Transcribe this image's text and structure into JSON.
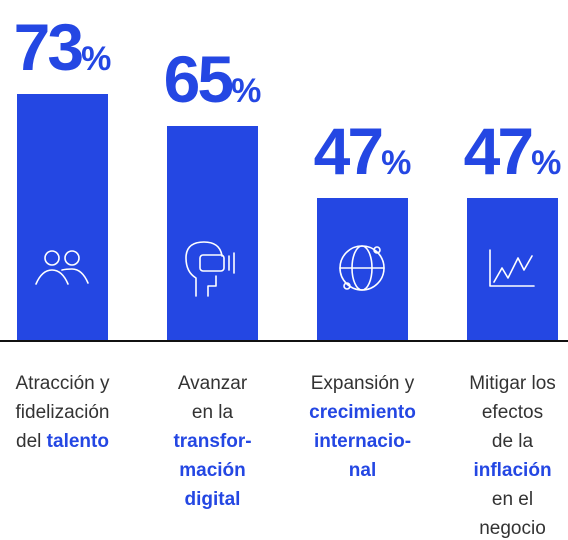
{
  "chart_data": {
    "type": "bar",
    "categories": [
      [
        [
          "Atracción y"
        ],
        [
          "fidelización"
        ],
        [
          "del ",
          {
            "text": "talento",
            "bold": true
          }
        ]
      ],
      [
        [
          "Avanzar"
        ],
        [
          "en la"
        ],
        [
          {
            "text": "transfor-",
            "bold": true
          }
        ],
        [
          {
            "text": "mación",
            "bold": true
          }
        ],
        [
          {
            "text": "digital",
            "bold": true
          }
        ]
      ],
      [
        [
          "Expansión y"
        ],
        [
          {
            "text": "crecimiento",
            "bold": true
          }
        ],
        [
          {
            "text": "internacio-",
            "bold": true
          }
        ],
        [
          {
            "text": "nal",
            "bold": true
          }
        ]
      ],
      [
        [
          "Mitigar los"
        ],
        [
          "efectos"
        ],
        [
          "de la"
        ],
        [
          {
            "text": "inflación",
            "bold": true
          }
        ],
        [
          "en el"
        ],
        [
          "negocio"
        ]
      ]
    ],
    "values": [
      73,
      65,
      47,
      47
    ],
    "value_labels": [
      "73%",
      "65%",
      "47%",
      "47%"
    ],
    "color": "#2447e3",
    "highlight_color": "#2447e3",
    "ylim": [
      11.25,
      90
    ]
  }
}
